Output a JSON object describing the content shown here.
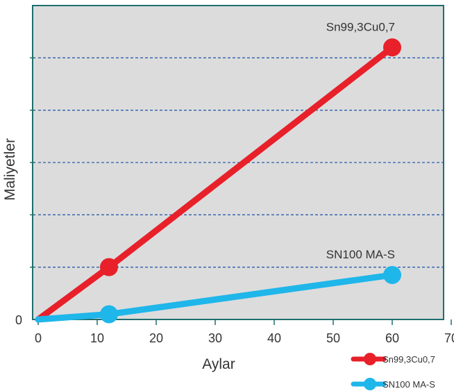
{
  "chart_data": {
    "type": "line",
    "title": "",
    "xlabel": "Aylar",
    "ylabel": "Maliyetler",
    "xlim": [
      0,
      70
    ],
    "ylim": [
      0,
      6
    ],
    "x_ticks": [
      "0",
      "10",
      "20",
      "30",
      "40",
      "50",
      "60",
      "70"
    ],
    "y_ticks": [
      "0"
    ],
    "grid": "horizontal-dashed",
    "legend_position": "bottom-right",
    "series": [
      {
        "name": "Sn99,3Cu0,7",
        "color": "#e8202a",
        "points": [
          [
            0,
            0
          ],
          [
            12,
            1.0
          ],
          [
            60,
            5.2
          ]
        ],
        "end_label": "Sn99,3Cu0,7"
      },
      {
        "name": "SN100 MA-S",
        "color": "#1fb6ea",
        "points": [
          [
            0,
            0
          ],
          [
            12,
            0.1
          ],
          [
            60,
            0.85
          ]
        ],
        "end_label": "SN100 MA-S"
      }
    ]
  }
}
